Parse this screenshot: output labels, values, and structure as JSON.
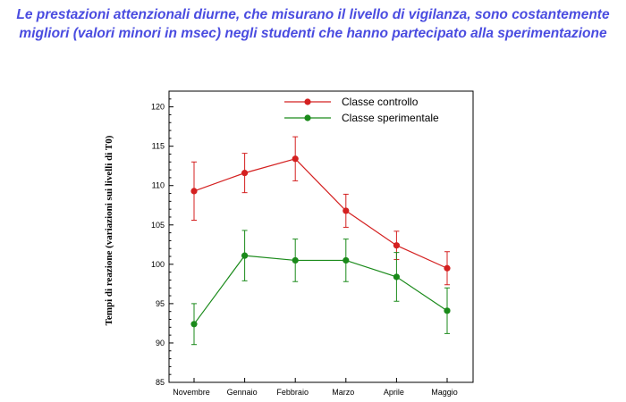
{
  "slide": {
    "title_line1": "Le prestazioni attenzionali diurne, che misurano il livello di vigilanza, sono costantemente",
    "title_line2": "migliori (valori minori in msec) negli studenti che hanno partecipato alla sperimentazione",
    "title_color": "#4a4ce0"
  },
  "chart_data": {
    "type": "line",
    "categories": [
      "Novembre",
      "Gennaio",
      "Febbraio",
      "Marzo",
      "Aprile",
      "Maggio"
    ],
    "ylabel": "Tempi di reazione (variazioni sui livelli di T0)",
    "xlabel": "",
    "ylim": [
      85,
      122
    ],
    "yticks": [
      85,
      90,
      95,
      100,
      105,
      110,
      115,
      120
    ],
    "grid": false,
    "legend_position": "top-right",
    "series": [
      {
        "name": "Classe controllo",
        "color": "#d42020",
        "values": [
          109.3,
          111.6,
          113.4,
          106.8,
          102.4,
          99.5
        ],
        "error": [
          3.7,
          2.5,
          2.8,
          2.1,
          1.8,
          2.1
        ]
      },
      {
        "name": "Classe sperimentale",
        "color": "#1a8a1a",
        "values": [
          92.4,
          101.1,
          100.5,
          100.5,
          98.4,
          94.1
        ],
        "error": [
          2.6,
          3.2,
          2.7,
          2.7,
          3.1,
          2.9
        ]
      }
    ]
  }
}
